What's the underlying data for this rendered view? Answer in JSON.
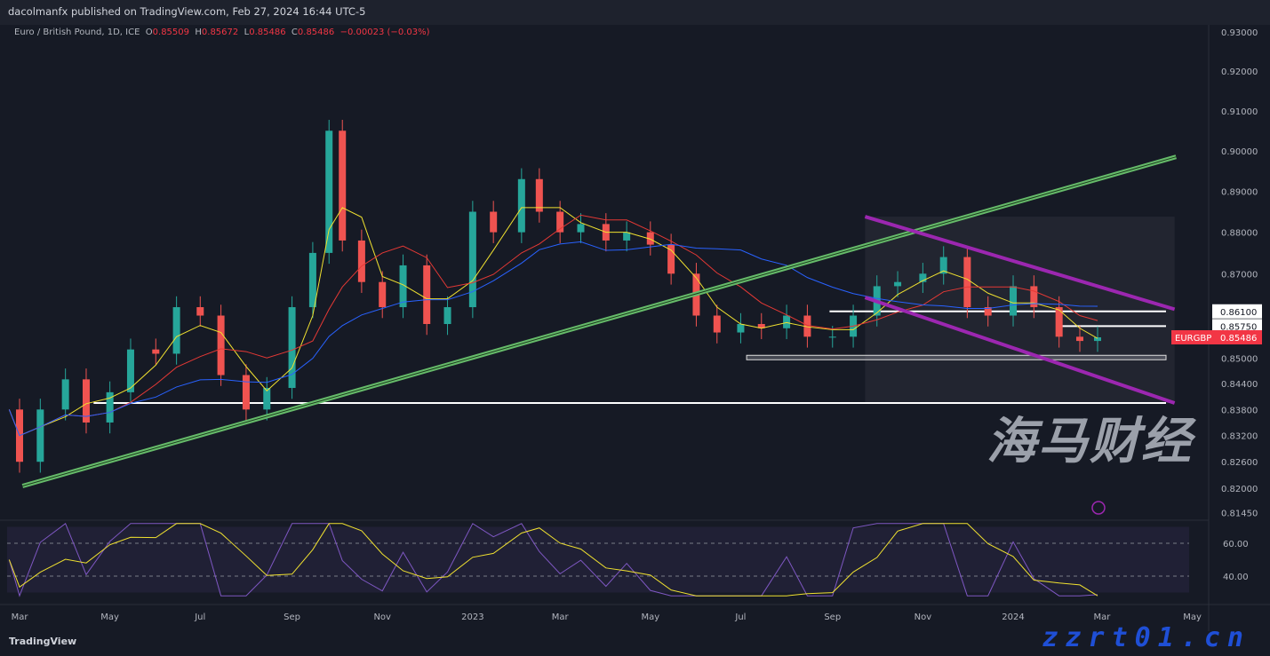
{
  "header": {
    "published": "dacolmanfx published on TradingView.com, Feb 27, 2024 16:44 UTC-5"
  },
  "legend": {
    "symbol": "Euro / British Pound, 1D, ICE",
    "o_label": "O",
    "o": "0.85509",
    "h_label": "H",
    "h": "0.85672",
    "l_label": "L",
    "l": "0.85486",
    "c_label": "C",
    "c": "0.85486",
    "change": "−0.00023 (−0.03%)"
  },
  "footer": {
    "logo": "TradingView"
  },
  "watermark": {
    "cn": "海马财经",
    "url": "zzrt01.cn"
  },
  "colors": {
    "bg": "#161a25",
    "up": "#26a69a",
    "down": "#ef5350",
    "ma50": "#f0e130",
    "ma100": "#e53935",
    "ma200": "#2962ff",
    "trend": "#66bb6a",
    "channel": "#9c27b0",
    "rsi": "#7e57c2"
  },
  "chart_data": {
    "type": "candlestick",
    "symbol": "EURGBP",
    "last_price": "0.85486",
    "y_scale": "log",
    "ylim": [
      0.8145,
      0.93
    ],
    "y_ticks": [
      "0.93000",
      "0.92000",
      "0.91000",
      "0.90000",
      "0.89000",
      "0.88000",
      "0.87000",
      "0.85000",
      "0.84400",
      "0.83800",
      "0.83200",
      "0.82600",
      "0.82000",
      "0.81450"
    ],
    "price_labels": [
      "0.86100",
      "0.85750"
    ],
    "x_ticks": [
      {
        "label": "Mar",
        "date": "2022-03-01"
      },
      {
        "label": "May",
        "date": "2022-05-01"
      },
      {
        "label": "Jul",
        "date": "2022-07-01"
      },
      {
        "label": "Sep",
        "date": "2022-09-01"
      },
      {
        "label": "Nov",
        "date": "2022-11-01"
      },
      {
        "label": "2023",
        "date": "2023-01-01"
      },
      {
        "label": "Mar",
        "date": "2023-03-01"
      },
      {
        "label": "May",
        "date": "2023-05-01"
      },
      {
        "label": "Jul",
        "date": "2023-07-01"
      },
      {
        "label": "Sep",
        "date": "2023-09-01"
      },
      {
        "label": "Nov",
        "date": "2023-11-01"
      },
      {
        "label": "2024",
        "date": "2024-01-01"
      },
      {
        "label": "Mar",
        "date": "2024-03-01"
      },
      {
        "label": "May",
        "date": "2024-05-01"
      }
    ],
    "closes": [
      [
        "2022-02-22",
        0.838
      ],
      [
        "2022-03-01",
        0.826
      ],
      [
        "2022-03-15",
        0.838
      ],
      [
        "2022-04-01",
        0.845
      ],
      [
        "2022-04-15",
        0.835
      ],
      [
        "2022-05-01",
        0.842
      ],
      [
        "2022-05-15",
        0.852
      ],
      [
        "2022-06-01",
        0.851
      ],
      [
        "2022-06-15",
        0.862
      ],
      [
        "2022-07-01",
        0.86
      ],
      [
        "2022-07-15",
        0.846
      ],
      [
        "2022-08-01",
        0.838
      ],
      [
        "2022-08-15",
        0.843
      ],
      [
        "2022-09-01",
        0.862
      ],
      [
        "2022-09-15",
        0.875
      ],
      [
        "2022-09-26",
        0.905
      ],
      [
        "2022-10-05",
        0.878
      ],
      [
        "2022-10-18",
        0.868
      ],
      [
        "2022-11-01",
        0.862
      ],
      [
        "2022-11-15",
        0.872
      ],
      [
        "2022-12-01",
        0.858
      ],
      [
        "2022-12-15",
        0.862
      ],
      [
        "2023-01-01",
        0.885
      ],
      [
        "2023-01-15",
        0.88
      ],
      [
        "2023-02-03",
        0.893
      ],
      [
        "2023-02-15",
        0.885
      ],
      [
        "2023-03-01",
        0.88
      ],
      [
        "2023-03-15",
        0.882
      ],
      [
        "2023-04-01",
        0.878
      ],
      [
        "2023-04-15",
        0.88
      ],
      [
        "2023-05-01",
        0.877
      ],
      [
        "2023-05-15",
        0.87
      ],
      [
        "2023-06-01",
        0.86
      ],
      [
        "2023-06-15",
        0.856
      ],
      [
        "2023-07-01",
        0.858
      ],
      [
        "2023-07-15",
        0.857
      ],
      [
        "2023-08-01",
        0.86
      ],
      [
        "2023-08-15",
        0.855
      ],
      [
        "2023-09-01",
        0.855
      ],
      [
        "2023-09-15",
        0.86
      ],
      [
        "2023-10-01",
        0.867
      ],
      [
        "2023-10-15",
        0.868
      ],
      [
        "2023-11-01",
        0.87
      ],
      [
        "2023-11-15",
        0.874
      ],
      [
        "2023-12-01",
        0.862
      ],
      [
        "2023-12-15",
        0.86
      ],
      [
        "2024-01-01",
        0.867
      ],
      [
        "2024-01-15",
        0.862
      ],
      [
        "2024-02-01",
        0.855
      ],
      [
        "2024-02-15",
        0.854
      ],
      [
        "2024-02-27",
        0.85486
      ]
    ],
    "trendline": [
      [
        "2022-03-03",
        0.8205
      ],
      [
        "2024-04-20",
        0.8985
      ]
    ],
    "channel_upper": [
      [
        "2023-09-23",
        0.8838
      ],
      [
        "2024-04-19",
        0.8615
      ]
    ],
    "channel_lower": [
      [
        "2023-09-23",
        0.8643
      ],
      [
        "2024-04-19",
        0.8395
      ]
    ],
    "levels": [
      {
        "price": 0.8395,
        "from": "2022-04-20"
      },
      {
        "price": 0.861,
        "from": "2023-08-30"
      },
      {
        "price": 0.8575,
        "from": "2024-01-30"
      },
      {
        "price": 0.85,
        "from": "2023-07-05",
        "style": "zone"
      }
    ],
    "ma_windows": [
      {
        "name": "50",
        "points": 3
      },
      {
        "name": "100",
        "points": 6
      },
      {
        "name": "200",
        "points": 13
      }
    ],
    "rsi": {
      "levels": [
        60,
        40
      ],
      "tick_labels": [
        "60.00",
        "40.00"
      ]
    }
  }
}
